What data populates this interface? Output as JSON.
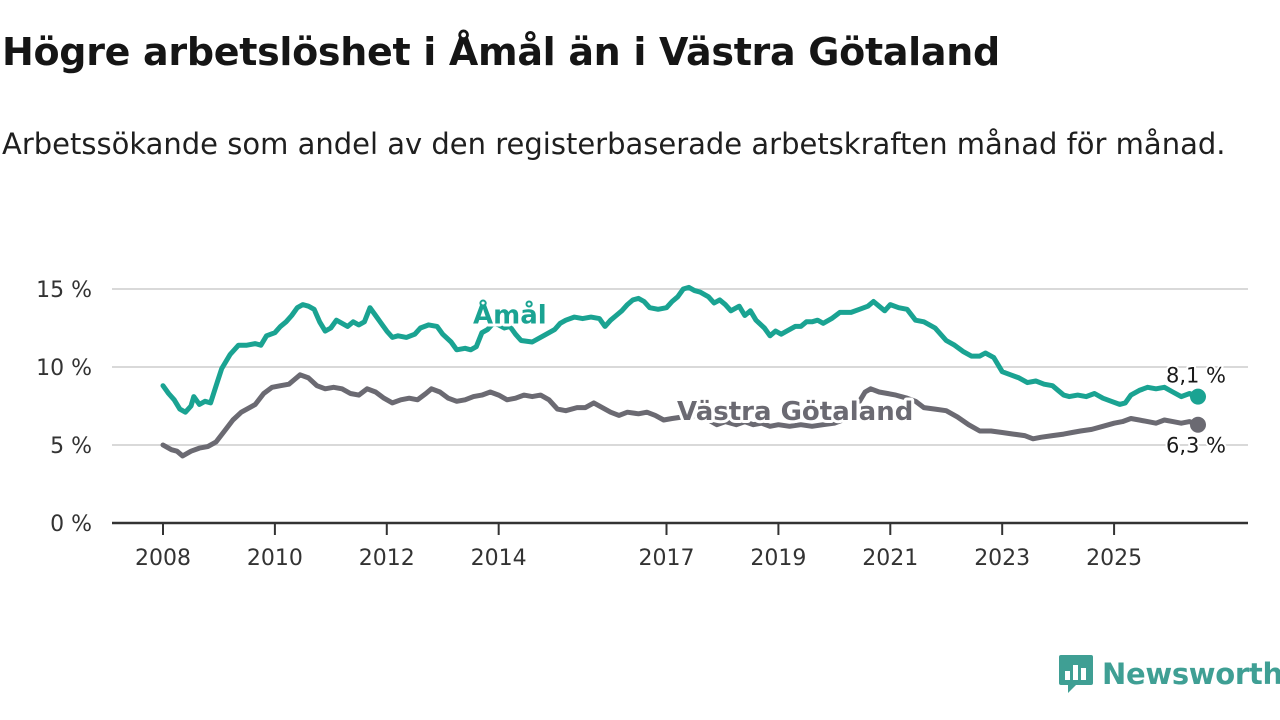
{
  "chart_data": {
    "type": "line",
    "title": "Högre arbetslöshet i Åmål än i Västra Götaland",
    "subtitle": "Arbetssökande som andel av den registerbaserade arbetskraften månad för månad.",
    "xlabel": "",
    "ylabel": "",
    "xlim": [
      2008,
      2026.5
    ],
    "ylim": [
      0,
      15
    ],
    "y_ticks": [
      0,
      5,
      10,
      15
    ],
    "y_tick_labels": [
      "0 %",
      "5 %",
      "10 %",
      "15 %"
    ],
    "x_tick_labels": [
      "2008",
      "2010",
      "2012",
      "2014",
      "2017",
      "2019",
      "2021",
      "2023",
      "2025"
    ],
    "x_tick_values": [
      2008,
      2010,
      2012,
      2014,
      2017,
      2019,
      2021,
      2023,
      2025
    ],
    "grid": true,
    "series": [
      {
        "name": "Åmål",
        "color": "#1aa392",
        "end_label": "8,1 %",
        "points": [
          [
            2008.0,
            8.8
          ],
          [
            2008.1,
            8.3
          ],
          [
            2008.2,
            7.9
          ],
          [
            2008.3,
            7.3
          ],
          [
            2008.4,
            7.1
          ],
          [
            2008.5,
            7.5
          ],
          [
            2008.55,
            8.1
          ],
          [
            2008.65,
            7.6
          ],
          [
            2008.75,
            7.8
          ],
          [
            2008.85,
            7.7
          ],
          [
            2008.95,
            8.8
          ],
          [
            2009.05,
            9.9
          ],
          [
            2009.2,
            10.8
          ],
          [
            2009.35,
            11.4
          ],
          [
            2009.5,
            11.4
          ],
          [
            2009.65,
            11.5
          ],
          [
            2009.75,
            11.4
          ],
          [
            2009.85,
            12.0
          ],
          [
            2010.0,
            12.2
          ],
          [
            2010.1,
            12.6
          ],
          [
            2010.2,
            12.9
          ],
          [
            2010.3,
            13.3
          ],
          [
            2010.4,
            13.8
          ],
          [
            2010.5,
            14.0
          ],
          [
            2010.6,
            13.9
          ],
          [
            2010.7,
            13.7
          ],
          [
            2010.8,
            12.9
          ],
          [
            2010.9,
            12.3
          ],
          [
            2011.0,
            12.5
          ],
          [
            2011.1,
            13.0
          ],
          [
            2011.2,
            12.8
          ],
          [
            2011.3,
            12.6
          ],
          [
            2011.4,
            12.9
          ],
          [
            2011.5,
            12.7
          ],
          [
            2011.6,
            12.9
          ],
          [
            2011.7,
            13.8
          ],
          [
            2011.8,
            13.3
          ],
          [
            2011.9,
            12.8
          ],
          [
            2012.0,
            12.3
          ],
          [
            2012.1,
            11.9
          ],
          [
            2012.2,
            12.0
          ],
          [
            2012.35,
            11.9
          ],
          [
            2012.5,
            12.1
          ],
          [
            2012.6,
            12.5
          ],
          [
            2012.75,
            12.7
          ],
          [
            2012.9,
            12.6
          ],
          [
            2013.0,
            12.1
          ],
          [
            2013.15,
            11.6
          ],
          [
            2013.25,
            11.1
          ],
          [
            2013.4,
            11.2
          ],
          [
            2013.5,
            11.1
          ],
          [
            2013.6,
            11.3
          ],
          [
            2013.7,
            12.2
          ],
          [
            2013.8,
            12.4
          ],
          [
            2013.9,
            12.8
          ],
          [
            2014.0,
            12.7
          ],
          [
            2014.1,
            12.5
          ],
          [
            2014.2,
            12.6
          ],
          [
            2014.3,
            12.1
          ],
          [
            2014.4,
            11.7
          ],
          [
            2014.6,
            11.6
          ],
          [
            2014.8,
            12.0
          ],
          [
            2015.0,
            12.4
          ],
          [
            2015.1,
            12.8
          ],
          [
            2015.2,
            13.0
          ],
          [
            2015.35,
            13.2
          ],
          [
            2015.5,
            13.1
          ],
          [
            2015.65,
            13.2
          ],
          [
            2015.8,
            13.1
          ],
          [
            2015.9,
            12.6
          ],
          [
            2016.0,
            13.0
          ],
          [
            2016.1,
            13.3
          ],
          [
            2016.2,
            13.6
          ],
          [
            2016.3,
            14.0
          ],
          [
            2016.4,
            14.3
          ],
          [
            2016.5,
            14.4
          ],
          [
            2016.6,
            14.2
          ],
          [
            2016.7,
            13.8
          ],
          [
            2016.85,
            13.7
          ],
          [
            2017.0,
            13.8
          ],
          [
            2017.1,
            14.2
          ],
          [
            2017.2,
            14.5
          ],
          [
            2017.3,
            15.0
          ],
          [
            2017.4,
            15.1
          ],
          [
            2017.5,
            14.9
          ],
          [
            2017.6,
            14.8
          ],
          [
            2017.75,
            14.5
          ],
          [
            2017.85,
            14.1
          ],
          [
            2017.95,
            14.3
          ],
          [
            2018.05,
            14.0
          ],
          [
            2018.15,
            13.6
          ],
          [
            2018.3,
            13.9
          ],
          [
            2018.4,
            13.3
          ],
          [
            2018.5,
            13.6
          ],
          [
            2018.6,
            13.0
          ],
          [
            2018.75,
            12.5
          ],
          [
            2018.85,
            12.0
          ],
          [
            2018.95,
            12.3
          ],
          [
            2019.05,
            12.1
          ],
          [
            2019.15,
            12.3
          ],
          [
            2019.3,
            12.6
          ],
          [
            2019.4,
            12.6
          ],
          [
            2019.5,
            12.9
          ],
          [
            2019.6,
            12.9
          ],
          [
            2019.7,
            13.0
          ],
          [
            2019.8,
            12.8
          ],
          [
            2019.95,
            13.1
          ],
          [
            2020.1,
            13.5
          ],
          [
            2020.3,
            13.5
          ],
          [
            2020.45,
            13.7
          ],
          [
            2020.6,
            13.9
          ],
          [
            2020.7,
            14.2
          ],
          [
            2020.8,
            13.9
          ],
          [
            2020.9,
            13.6
          ],
          [
            2021.0,
            14.0
          ],
          [
            2021.15,
            13.8
          ],
          [
            2021.3,
            13.7
          ],
          [
            2021.45,
            13.0
          ],
          [
            2021.6,
            12.9
          ],
          [
            2021.8,
            12.5
          ],
          [
            2022.0,
            11.7
          ],
          [
            2022.15,
            11.4
          ],
          [
            2022.3,
            11.0
          ],
          [
            2022.45,
            10.7
          ],
          [
            2022.6,
            10.7
          ],
          [
            2022.7,
            10.9
          ],
          [
            2022.85,
            10.6
          ],
          [
            2023.0,
            9.7
          ],
          [
            2023.15,
            9.5
          ],
          [
            2023.3,
            9.3
          ],
          [
            2023.45,
            9.0
          ],
          [
            2023.6,
            9.1
          ],
          [
            2023.75,
            8.9
          ],
          [
            2023.9,
            8.8
          ],
          [
            2024.0,
            8.5
          ],
          [
            2024.1,
            8.2
          ],
          [
            2024.2,
            8.1
          ],
          [
            2024.35,
            8.2
          ],
          [
            2024.5,
            8.1
          ],
          [
            2024.65,
            8.3
          ],
          [
            2024.8,
            8.0
          ],
          [
            2024.95,
            7.8
          ],
          [
            2025.1,
            7.6
          ],
          [
            2025.2,
            7.7
          ],
          [
            2025.3,
            8.2
          ],
          [
            2025.45,
            8.5
          ],
          [
            2025.6,
            8.7
          ],
          [
            2025.75,
            8.6
          ],
          [
            2025.9,
            8.7
          ],
          [
            2026.05,
            8.4
          ],
          [
            2026.2,
            8.1
          ],
          [
            2026.35,
            8.3
          ],
          [
            2026.5,
            8.1
          ]
        ]
      },
      {
        "name": "Västra Götaland",
        "color": "#6b6a72",
        "end_label": "6,3 %",
        "points": [
          [
            2008.0,
            5.0
          ],
          [
            2008.15,
            4.7
          ],
          [
            2008.25,
            4.6
          ],
          [
            2008.35,
            4.3
          ],
          [
            2008.5,
            4.6
          ],
          [
            2008.65,
            4.8
          ],
          [
            2008.8,
            4.9
          ],
          [
            2008.95,
            5.2
          ],
          [
            2009.1,
            5.9
          ],
          [
            2009.25,
            6.6
          ],
          [
            2009.4,
            7.1
          ],
          [
            2009.55,
            7.4
          ],
          [
            2009.65,
            7.6
          ],
          [
            2009.8,
            8.3
          ],
          [
            2009.95,
            8.7
          ],
          [
            2010.1,
            8.8
          ],
          [
            2010.25,
            8.9
          ],
          [
            2010.35,
            9.2
          ],
          [
            2010.45,
            9.5
          ],
          [
            2010.6,
            9.3
          ],
          [
            2010.75,
            8.8
          ],
          [
            2010.9,
            8.6
          ],
          [
            2011.05,
            8.7
          ],
          [
            2011.2,
            8.6
          ],
          [
            2011.35,
            8.3
          ],
          [
            2011.5,
            8.2
          ],
          [
            2011.65,
            8.6
          ],
          [
            2011.8,
            8.4
          ],
          [
            2011.95,
            8.0
          ],
          [
            2012.1,
            7.7
          ],
          [
            2012.25,
            7.9
          ],
          [
            2012.4,
            8.0
          ],
          [
            2012.55,
            7.9
          ],
          [
            2012.7,
            8.3
          ],
          [
            2012.8,
            8.6
          ],
          [
            2012.95,
            8.4
          ],
          [
            2013.1,
            8.0
          ],
          [
            2013.25,
            7.8
          ],
          [
            2013.4,
            7.9
          ],
          [
            2013.55,
            8.1
          ],
          [
            2013.7,
            8.2
          ],
          [
            2013.85,
            8.4
          ],
          [
            2014.0,
            8.2
          ],
          [
            2014.15,
            7.9
          ],
          [
            2014.3,
            8.0
          ],
          [
            2014.45,
            8.2
          ],
          [
            2014.6,
            8.1
          ],
          [
            2014.75,
            8.2
          ],
          [
            2014.9,
            7.9
          ],
          [
            2015.05,
            7.3
          ],
          [
            2015.2,
            7.2
          ],
          [
            2015.4,
            7.4
          ],
          [
            2015.55,
            7.4
          ],
          [
            2015.7,
            7.7
          ],
          [
            2015.85,
            7.4
          ],
          [
            2016.0,
            7.1
          ],
          [
            2016.15,
            6.9
          ],
          [
            2016.3,
            7.1
          ],
          [
            2016.5,
            7.0
          ],
          [
            2016.65,
            7.1
          ],
          [
            2016.8,
            6.9
          ],
          [
            2016.95,
            6.6
          ],
          [
            2017.1,
            6.7
          ],
          [
            2017.3,
            6.8
          ],
          [
            2017.45,
            6.9
          ],
          [
            2017.6,
            6.8
          ],
          [
            2017.75,
            6.6
          ],
          [
            2017.9,
            6.3
          ],
          [
            2018.05,
            6.5
          ],
          [
            2018.25,
            6.3
          ],
          [
            2018.4,
            6.5
          ],
          [
            2018.55,
            6.3
          ],
          [
            2018.7,
            6.4
          ],
          [
            2018.85,
            6.2
          ],
          [
            2019.0,
            6.3
          ],
          [
            2019.2,
            6.2
          ],
          [
            2019.4,
            6.3
          ],
          [
            2019.6,
            6.2
          ],
          [
            2019.8,
            6.3
          ],
          [
            2020.0,
            6.4
          ],
          [
            2020.15,
            6.6
          ],
          [
            2020.3,
            7.0
          ],
          [
            2020.45,
            7.8
          ],
          [
            2020.55,
            8.4
          ],
          [
            2020.65,
            8.6
          ],
          [
            2020.8,
            8.4
          ],
          [
            2020.95,
            8.3
          ],
          [
            2021.1,
            8.2
          ],
          [
            2021.3,
            8.0
          ],
          [
            2021.45,
            7.8
          ],
          [
            2021.6,
            7.4
          ],
          [
            2021.8,
            7.3
          ],
          [
            2022.0,
            7.2
          ],
          [
            2022.2,
            6.8
          ],
          [
            2022.4,
            6.3
          ],
          [
            2022.6,
            5.9
          ],
          [
            2022.8,
            5.9
          ],
          [
            2023.0,
            5.8
          ],
          [
            2023.2,
            5.7
          ],
          [
            2023.4,
            5.6
          ],
          [
            2023.55,
            5.4
          ],
          [
            2023.7,
            5.5
          ],
          [
            2023.9,
            5.6
          ],
          [
            2024.1,
            5.7
          ],
          [
            2024.25,
            5.8
          ],
          [
            2024.4,
            5.9
          ],
          [
            2024.6,
            6.0
          ],
          [
            2024.8,
            6.2
          ],
          [
            2025.0,
            6.4
          ],
          [
            2025.15,
            6.5
          ],
          [
            2025.3,
            6.7
          ],
          [
            2025.45,
            6.6
          ],
          [
            2025.6,
            6.5
          ],
          [
            2025.75,
            6.4
          ],
          [
            2025.9,
            6.6
          ],
          [
            2026.05,
            6.5
          ],
          [
            2026.2,
            6.4
          ],
          [
            2026.35,
            6.5
          ],
          [
            2026.5,
            6.3
          ]
        ]
      }
    ]
  },
  "brand": {
    "name": "Newsworthy",
    "color": "#3f9f94"
  }
}
